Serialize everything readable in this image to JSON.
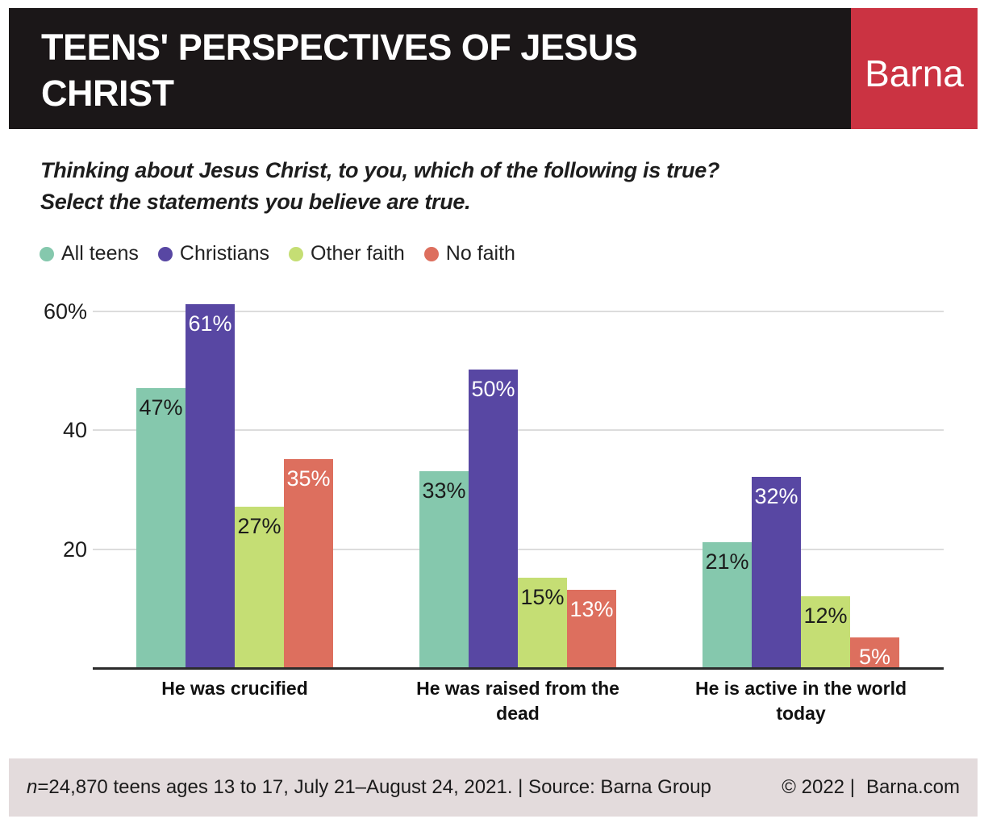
{
  "header": {
    "title_line1": "TEENS' PERSPECTIVES OF JESUS",
    "title_line2": "CHRIST",
    "brand": "Barna"
  },
  "subtitle": {
    "line1": "Thinking about Jesus Christ, to you, which of the following is true?",
    "line2": "Select the statements you believe are true."
  },
  "colors": {
    "header_bg": "#1B1718",
    "brand_bg": "#CB3342",
    "footer_bg": "#E3DBDC",
    "gridline": "#DCDCDC",
    "axis_line": "#2B2B2B",
    "label_dark": "#1B1B1B",
    "label_light": "#FFFFFF"
  },
  "chart_data": {
    "type": "bar",
    "title": "Teens' perspectives of Jesus Christ",
    "categories": [
      "He was crucified",
      "He was raised from the dead",
      "He is active in the world today"
    ],
    "series": [
      {
        "name": "All teens",
        "color": "#85C8AD",
        "label_color": "#1B1B1B",
        "values": [
          47,
          33,
          21
        ]
      },
      {
        "name": "Christians",
        "color": "#5847A3",
        "label_color": "#FFFFFF",
        "values": [
          61,
          50,
          32
        ]
      },
      {
        "name": "Other faith",
        "color": "#C5DE74",
        "label_color": "#1B1B1B",
        "values": [
          27,
          15,
          12
        ]
      },
      {
        "name": "No faith",
        "color": "#DD6F5E",
        "label_color": "#FFFFFF",
        "values": [
          35,
          13,
          5
        ]
      }
    ],
    "value_suffix": "%",
    "yticks": [
      {
        "value": 60,
        "label": "60%"
      },
      {
        "value": 40,
        "label": "40"
      },
      {
        "value": 20,
        "label": "20"
      }
    ],
    "ylim": [
      0,
      62
    ],
    "grid": true,
    "legend_position": "top-left",
    "xlabel": "",
    "ylabel": ""
  },
  "footer": {
    "n_italic": "n",
    "note": "=24,870 teens ages 13 to 17, July 21–August 24, 2021. | Source: Barna Group",
    "copyright": "© 2022 |",
    "site": "Barna.com"
  }
}
